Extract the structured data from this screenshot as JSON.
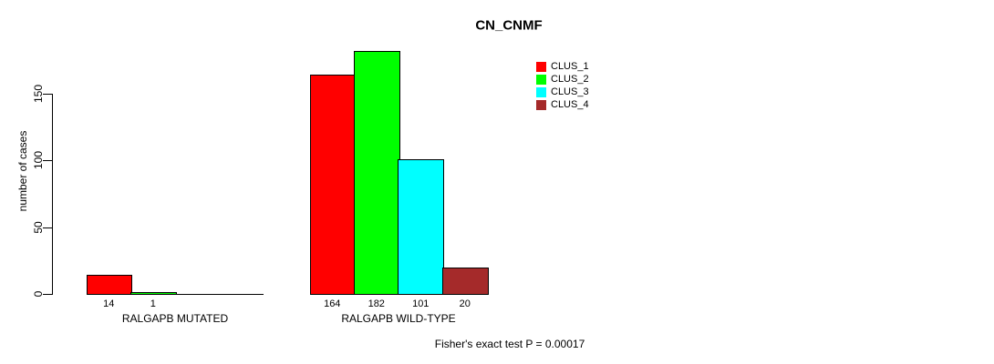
{
  "title": "CN_CNMF",
  "chart_data": {
    "type": "bar",
    "title": "CN_CNMF",
    "xlabel": "",
    "ylabel": "number of cases",
    "ylim": [
      0,
      150
    ],
    "yticks": [
      0,
      50,
      100,
      150
    ],
    "grid": false,
    "legend_position": "top-right-inside",
    "series": [
      {
        "name": "CLUS_1",
        "color": "#ff0000"
      },
      {
        "name": "CLUS_2",
        "color": "#00ff00"
      },
      {
        "name": "CLUS_3",
        "color": "#00ffff"
      },
      {
        "name": "CLUS_4",
        "color": "#a52a2a"
      }
    ],
    "groups": [
      {
        "label": "RALGAPB MUTATED",
        "values": [
          14,
          1,
          0,
          0
        ],
        "bar_labels": [
          "14",
          "1",
          "",
          ""
        ]
      },
      {
        "label": "RALGAPB WILD-TYPE",
        "values": [
          164,
          182,
          101,
          20
        ],
        "bar_labels": [
          "164",
          "182",
          "101",
          "20"
        ]
      }
    ],
    "annotation": "Fisher's exact test P = 0.00017"
  }
}
